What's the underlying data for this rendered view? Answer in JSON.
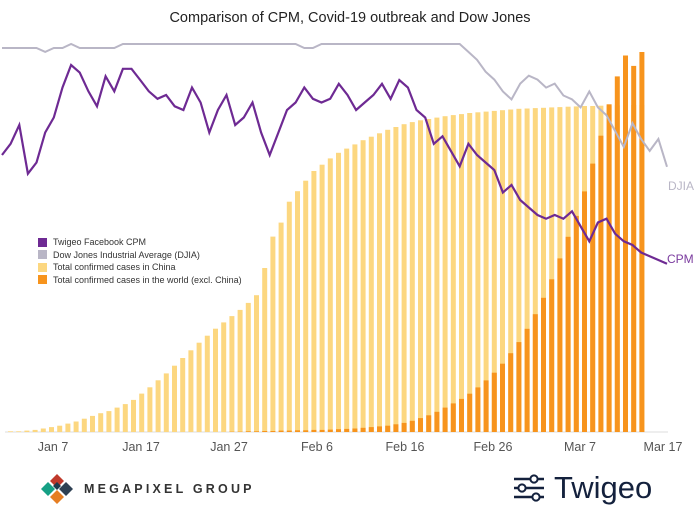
{
  "title": "Comparison of CPM, Covid-19 outbreak and Dow Jones",
  "colors": {
    "cpm": "#6e2a93",
    "djia": "#b9b6c6",
    "china": "#fcd780",
    "world": "#f7941d",
    "axis": "#dddddd"
  },
  "legend": [
    {
      "label": "Twigeo Facebook CPM",
      "color": "#6e2a93"
    },
    {
      "label": "Dow Jones Industrial Average (DJIA)",
      "color": "#b9b6c6"
    },
    {
      "label": "Total confirmed cases in China",
      "color": "#fcd780"
    },
    {
      "label": "Total confirmed cases in the world (excl. China)",
      "color": "#f7941d"
    }
  ],
  "end_labels": {
    "djia": "DJIA",
    "cpm": "CPM"
  },
  "branding": {
    "left": "MEGAPIXEL GROUP",
    "right": "Twigeo"
  },
  "chart_data": {
    "type": "bar",
    "title": "Comparison of CPM, Covid-19 outbreak and Dow Jones",
    "x_tick_labels": [
      "Jan 7",
      "Jan 17",
      "Jan 27",
      "Feb 6",
      "Feb 16",
      "Feb 26",
      "Mar 7",
      "Mar 17"
    ],
    "x_tick_index": [
      6,
      16,
      26,
      36,
      46,
      56,
      66,
      76
    ],
    "n_days": 78,
    "grid": false,
    "legend_position": "middle-left",
    "series": [
      {
        "name": "Total confirmed cases in China",
        "type": "bar",
        "unit": "share of maximum",
        "values": [
          0.002,
          0.002,
          0.004,
          0.006,
          0.01,
          0.014,
          0.018,
          0.024,
          0.03,
          0.038,
          0.046,
          0.054,
          0.06,
          0.07,
          0.08,
          0.092,
          0.11,
          0.128,
          0.148,
          0.168,
          0.19,
          0.212,
          0.234,
          0.256,
          0.276,
          0.296,
          0.314,
          0.332,
          0.35,
          0.37,
          0.392,
          0.47,
          0.56,
          0.6,
          0.66,
          0.69,
          0.72,
          0.748,
          0.766,
          0.784,
          0.8,
          0.812,
          0.824,
          0.836,
          0.846,
          0.856,
          0.866,
          0.874,
          0.882,
          0.888,
          0.893,
          0.897,
          0.901,
          0.905,
          0.908,
          0.911,
          0.914,
          0.916,
          0.918,
          0.92,
          0.922,
          0.924,
          0.926,
          0.927,
          0.928,
          0.929,
          0.93,
          0.931,
          0.932,
          0.933,
          0.934,
          0.934,
          0.935,
          0.935,
          0.936,
          0.936,
          0.937,
          0.937
        ]
      },
      {
        "name": "Total confirmed cases in the world (excl. China)",
        "type": "bar",
        "unit": "share of maximum",
        "values": [
          0,
          0,
          0,
          0,
          0,
          0,
          0,
          0,
          0,
          0,
          0,
          0,
          0,
          0,
          0,
          0,
          0,
          0,
          0,
          0,
          0,
          0,
          0,
          0,
          0,
          0,
          0,
          0.001,
          0.001,
          0.002,
          0.002,
          0.003,
          0.003,
          0.004,
          0.004,
          0.005,
          0.005,
          0.006,
          0.006,
          0.007,
          0.008,
          0.009,
          0.01,
          0.012,
          0.014,
          0.016,
          0.018,
          0.022,
          0.026,
          0.032,
          0.04,
          0.048,
          0.058,
          0.07,
          0.082,
          0.095,
          0.11,
          0.128,
          0.148,
          0.17,
          0.196,
          0.226,
          0.258,
          0.296,
          0.338,
          0.385,
          0.438,
          0.498,
          0.56,
          0.62,
          0.69,
          0.77,
          0.85,
          0.94,
          1.02,
          1.08,
          1.05,
          1.09
        ]
      },
      {
        "name": "Twigeo Facebook CPM",
        "type": "line",
        "unit": "relative index",
        "values": [
          0.72,
          0.75,
          0.8,
          0.67,
          0.7,
          0.78,
          0.82,
          0.9,
          0.96,
          0.94,
          0.89,
          0.85,
          0.93,
          0.89,
          0.95,
          0.95,
          0.92,
          0.89,
          0.87,
          0.88,
          0.85,
          0.84,
          0.9,
          0.86,
          0.78,
          0.84,
          0.88,
          0.8,
          0.82,
          0.86,
          0.78,
          0.72,
          0.78,
          0.84,
          0.86,
          0.9,
          0.87,
          0.86,
          0.87,
          0.91,
          0.88,
          0.84,
          0.86,
          0.88,
          0.91,
          0.87,
          0.92,
          0.9,
          0.84,
          0.82,
          0.75,
          0.77,
          0.73,
          0.69,
          0.75,
          0.72,
          0.7,
          0.68,
          0.62,
          0.64,
          0.6,
          0.58,
          0.56,
          0.55,
          0.56,
          0.55,
          0.57,
          0.53,
          0.49,
          0.54,
          0.55,
          0.51,
          0.49,
          0.48,
          0.46,
          0.45,
          0.44,
          0.43
        ]
      },
      {
        "name": "Dow Jones Industrial Average (DJIA)",
        "type": "line",
        "unit": "relative index",
        "values": [
          0.99,
          0.99,
          0.99,
          0.99,
          0.99,
          0.98,
          0.99,
          0.99,
          1.0,
          0.99,
          0.99,
          0.99,
          0.99,
          0.99,
          1.0,
          1.0,
          1.0,
          1.0,
          1.0,
          1.0,
          1.0,
          1.0,
          1.0,
          1.0,
          1.0,
          1.0,
          1.0,
          1.0,
          1.0,
          1.0,
          1.0,
          1.0,
          1.0,
          1.0,
          1.0,
          0.99,
          0.99,
          1.0,
          1.0,
          1.0,
          1.0,
          1.0,
          1.0,
          1.0,
          1.0,
          1.0,
          1.0,
          1.0,
          1.0,
          1.0,
          1.0,
          1.0,
          1.0,
          1.0,
          0.98,
          0.96,
          0.93,
          0.91,
          0.88,
          0.86,
          0.9,
          0.92,
          0.91,
          0.89,
          0.9,
          0.87,
          0.86,
          0.84,
          0.88,
          0.84,
          0.82,
          0.78,
          0.74,
          0.8,
          0.76,
          0.73,
          0.76,
          0.69
        ]
      }
    ]
  }
}
